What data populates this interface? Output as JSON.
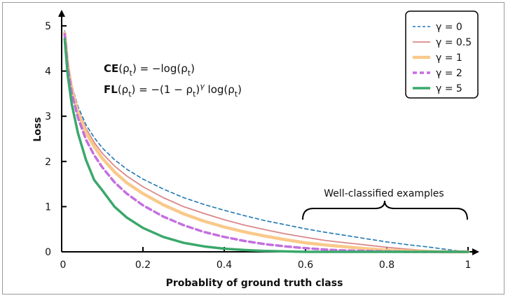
{
  "chart_data": {
    "type": "line",
    "xlabel": "Probablity of ground truth class",
    "ylabel": "Loss",
    "xlim": [
      0,
      1
    ],
    "ylim": [
      0,
      5
    ],
    "x_ticks": [
      "0",
      "0.2",
      "0.4",
      "0.6",
      "0.8",
      "1"
    ],
    "y_ticks": [
      "0",
      "1",
      "2",
      "3",
      "4",
      "5"
    ],
    "grid": false,
    "legend_position": "top-right",
    "formulas": [
      {
        "bold": "CE",
        "rest": "(ρt) = −log(ρt)"
      },
      {
        "bold": "FL",
        "rest": "(ρt) = −(1 − ρt)γ log(ρt)"
      }
    ],
    "annotation": "Well-classified examples",
    "x": [
      0.0075,
      0.015,
      0.025,
      0.04,
      0.06,
      0.08,
      0.1,
      0.13,
      0.16,
      0.2,
      0.25,
      0.3,
      0.35,
      0.4,
      0.45,
      0.5,
      0.55,
      0.6,
      0.65,
      0.7,
      0.75,
      0.8,
      0.85,
      0.9,
      0.95,
      1.0
    ],
    "series": [
      {
        "name": "γ = 0",
        "gamma": 0,
        "color": "#1f77b4",
        "style": "dashed",
        "values": [
          4.89,
          4.2,
          3.69,
          3.22,
          2.81,
          2.53,
          2.3,
          2.04,
          1.83,
          1.61,
          1.39,
          1.2,
          1.05,
          0.92,
          0.8,
          0.69,
          0.6,
          0.51,
          0.43,
          0.36,
          0.29,
          0.22,
          0.16,
          0.11,
          0.05,
          0.0
        ]
      },
      {
        "name": "γ = 0.5",
        "gamma": 0.5,
        "color": "#d9888a",
        "style": "solid",
        "values": [
          4.87,
          4.17,
          3.64,
          3.15,
          2.73,
          2.42,
          2.18,
          1.9,
          1.68,
          1.44,
          1.2,
          1.0,
          0.85,
          0.71,
          0.59,
          0.49,
          0.4,
          0.32,
          0.25,
          0.2,
          0.15,
          0.1,
          0.06,
          0.03,
          0.01,
          0.0
        ]
      },
      {
        "name": "γ = 1",
        "gamma": 1,
        "color": "#f9c98a",
        "style": "solid",
        "values": [
          4.85,
          4.13,
          3.6,
          3.09,
          2.64,
          2.33,
          2.07,
          1.77,
          1.53,
          1.29,
          1.04,
          0.84,
          0.68,
          0.55,
          0.44,
          0.35,
          0.27,
          0.2,
          0.15,
          0.11,
          0.07,
          0.04,
          0.02,
          0.01,
          0.0,
          0.0
        ]
      },
      {
        "name": "γ = 2",
        "gamma": 2,
        "color": "#c46fe0",
        "style": "dashed",
        "values": [
          4.82,
          4.08,
          3.51,
          2.97,
          2.48,
          2.14,
          1.87,
          1.54,
          1.29,
          1.03,
          0.78,
          0.59,
          0.44,
          0.33,
          0.24,
          0.17,
          0.12,
          0.08,
          0.05,
          0.03,
          0.02,
          0.01,
          0.0,
          0.0,
          0.0,
          0.0
        ]
      },
      {
        "name": "γ = 5",
        "gamma": 5,
        "color": "#3aa86b",
        "style": "solid",
        "values": [
          4.71,
          3.9,
          3.26,
          2.63,
          2.03,
          1.59,
          1.36,
          1.0,
          0.76,
          0.53,
          0.33,
          0.2,
          0.12,
          0.07,
          0.04,
          0.02,
          0.01,
          0.0,
          0.0,
          0.0,
          0.0,
          0.0,
          0.0,
          0.0,
          0.0,
          0.0
        ]
      }
    ]
  }
}
